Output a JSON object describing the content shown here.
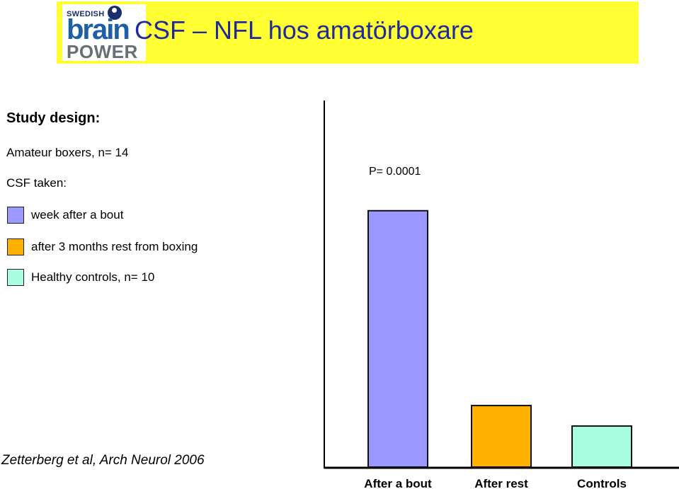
{
  "header": {
    "title": "CSF – NFL hos amatörboxare"
  },
  "logo": {
    "line1": "SWEDISH",
    "line2": "brain",
    "line3": "POWER"
  },
  "study": {
    "heading": "Study design:",
    "boxers": "Amateur boxers, n= 14",
    "csf_taken": "CSF taken:",
    "legend": [
      {
        "label": "week after a bout",
        "color": "#9b99ff"
      },
      {
        "label": "after 3 months rest from boxing",
        "color": "#ffb000"
      },
      {
        "label": "Healthy controls,  n= 10",
        "color": "#a6fde0"
      }
    ]
  },
  "citation": "Zetterberg et al, Arch Neurol 2006",
  "chart_data": {
    "type": "bar",
    "categories": [
      "After a bout",
      "After rest",
      "Controls"
    ],
    "values": [
      100,
      24,
      16
    ],
    "colors": [
      "#9b99ff",
      "#ffb000",
      "#a6fde0"
    ],
    "annotation": "P= 0.0001",
    "ylim": [
      0,
      143
    ],
    "grid": false,
    "ylabel": "",
    "xlabel": ""
  }
}
